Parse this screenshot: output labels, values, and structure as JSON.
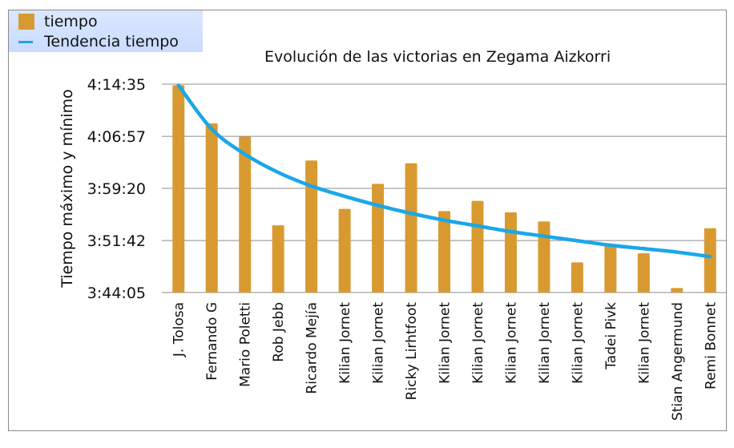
{
  "chart_data": {
    "type": "bar",
    "title": "Evolución de las victorias en Zegama Aizkorri",
    "xlabel": "",
    "ylabel": "Tiempo máximo y mínimo",
    "ylim": [
      "3:44:05",
      "4:14:35"
    ],
    "yticks": [
      "3:44:05",
      "3:51:42",
      "3:59:20",
      "4:06:57",
      "4:14:35"
    ],
    "grid": true,
    "legend_position": "top-left",
    "categories": [
      "J. Tolosa",
      "Fernando G",
      "Mario Poletti",
      "Rob Jebb",
      "Ricardo Mejía",
      "Kilian Jornet",
      "Kilian Jornet",
      "Ricky Lirhtfoot",
      "Kilian Jornet",
      "Kilian Jornet",
      "Kilian Jornet",
      "Kilian Jornet",
      "Kilian Jornet",
      "Tadei Pivk",
      "Kilian Jornet",
      "Stian Angermund",
      "Remi Bonnet"
    ],
    "series": [
      {
        "name": "tiempo",
        "color": "#d89a30",
        "values": [
          "4:14:25",
          "4:08:50",
          "4:06:55",
          "3:53:55",
          "4:03:25",
          "3:56:20",
          "4:00:00",
          "4:03:00",
          "3:56:00",
          "3:57:30",
          "3:55:50",
          "3:54:30",
          "3:48:30",
          "3:50:55",
          "3:49:50",
          "3:44:45",
          "3:53:30"
        ]
      },
      {
        "name": "Tendencia tiempo",
        "color": "#1aa7ea",
        "type": "trendline",
        "values": [
          "4:14:25",
          "4:08:00",
          "4:04:20",
          "4:01:40",
          "3:59:40",
          "3:58:10",
          "3:56:50",
          "3:55:40",
          "3:54:40",
          "3:53:50",
          "3:53:00",
          "3:52:20",
          "3:51:40",
          "3:51:00",
          "3:50:30",
          "3:50:00",
          "3:49:20"
        ]
      }
    ]
  }
}
